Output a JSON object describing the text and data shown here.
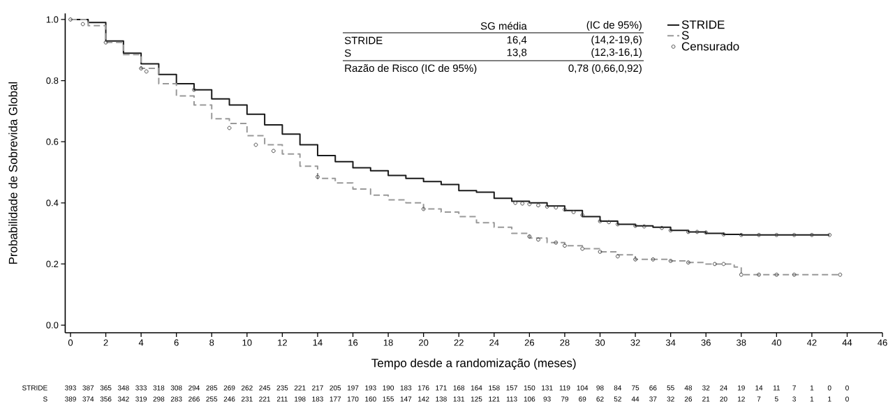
{
  "chart_data": {
    "type": "step",
    "xlabel": "Tempo desde a randomização (meses)",
    "ylabel": "Probabilidade de Sobrevida Global",
    "xlim": [
      -0.3,
      46
    ],
    "ylim": [
      -0.025,
      1.02
    ],
    "xticks": [
      0,
      2,
      4,
      6,
      8,
      10,
      12,
      14,
      16,
      18,
      20,
      22,
      24,
      26,
      28,
      30,
      32,
      34,
      36,
      38,
      40,
      42,
      44,
      46
    ],
    "yticks": [
      {
        "value": 0,
        "label": "0.0"
      },
      {
        "value": 0.2,
        "label": "0.2"
      },
      {
        "value": 0.4,
        "label": "0.4"
      },
      {
        "value": 0.6,
        "label": "0.6"
      },
      {
        "value": 0.8,
        "label": "0.8"
      },
      {
        "value": 1,
        "label": "1.0"
      }
    ],
    "legend": "top right",
    "series": [
      {
        "name": "STRIDE",
        "color": "#1a1a1a",
        "line_style": "solid",
        "x": [
          0,
          1,
          2,
          3,
          4,
          5,
          6,
          7,
          8,
          9,
          10,
          11,
          12,
          13,
          14,
          15,
          16,
          17,
          18,
          19,
          20,
          21,
          22,
          23,
          24,
          25,
          26,
          27,
          28,
          29,
          30,
          31,
          32,
          33,
          34,
          35,
          36,
          37,
          38,
          43
        ],
        "values": [
          1.0,
          0.99,
          0.93,
          0.89,
          0.855,
          0.82,
          0.79,
          0.77,
          0.74,
          0.72,
          0.69,
          0.655,
          0.625,
          0.59,
          0.555,
          0.535,
          0.515,
          0.505,
          0.49,
          0.48,
          0.47,
          0.46,
          0.44,
          0.435,
          0.415,
          0.405,
          0.4,
          0.39,
          0.375,
          0.355,
          0.34,
          0.33,
          0.325,
          0.32,
          0.31,
          0.305,
          0.3,
          0.297,
          0.295,
          0.295
        ]
      },
      {
        "name": "S",
        "color": "#999999",
        "line_style": "dashed",
        "x": [
          0,
          1,
          2,
          3,
          4,
          5,
          6,
          7,
          8,
          9,
          10,
          11,
          12,
          13,
          14,
          15,
          16,
          17,
          18,
          19,
          20,
          21,
          22,
          23,
          24,
          25,
          26,
          27,
          28,
          29,
          30,
          31,
          32,
          33,
          34,
          35,
          36,
          37,
          37.6,
          38,
          43.6
        ],
        "values": [
          1.0,
          0.98,
          0.925,
          0.885,
          0.84,
          0.79,
          0.75,
          0.72,
          0.675,
          0.66,
          0.62,
          0.59,
          0.56,
          0.52,
          0.48,
          0.465,
          0.445,
          0.425,
          0.41,
          0.4,
          0.38,
          0.37,
          0.355,
          0.335,
          0.32,
          0.3,
          0.285,
          0.27,
          0.26,
          0.25,
          0.24,
          0.23,
          0.215,
          0.215,
          0.21,
          0.205,
          0.2,
          0.2,
          0.19,
          0.165,
          0.165
        ]
      },
      {
        "name": "Censurado",
        "type": "scatter",
        "marker": "circle",
        "color": "#444444",
        "x": [
          0,
          7,
          25.2,
          25.6,
          26,
          26.5,
          27,
          27.5,
          28,
          28.5,
          29,
          30,
          30.5,
          31,
          32,
          32.5,
          33.5,
          34,
          35,
          35.5,
          36,
          37,
          38,
          39,
          40,
          41,
          42,
          43,
          0.7,
          2,
          4,
          4.3,
          9,
          10.5,
          11.5,
          14,
          20,
          26,
          26.5,
          27.5,
          28,
          29,
          30,
          31,
          32,
          33,
          34,
          35,
          36.5,
          37,
          38,
          39,
          40,
          41,
          43.6
        ],
        "values": [
          1.0,
          0.77,
          0.4,
          0.398,
          0.396,
          0.392,
          0.388,
          0.385,
          0.378,
          0.37,
          0.36,
          0.34,
          0.337,
          0.33,
          0.325,
          0.323,
          0.318,
          0.31,
          0.305,
          0.305,
          0.303,
          0.297,
          0.295,
          0.295,
          0.295,
          0.295,
          0.295,
          0.295,
          0.985,
          0.925,
          0.84,
          0.83,
          0.645,
          0.59,
          0.57,
          0.485,
          0.38,
          0.29,
          0.28,
          0.27,
          0.26,
          0.25,
          0.24,
          0.225,
          0.215,
          0.215,
          0.21,
          0.205,
          0.2,
          0.2,
          0.165,
          0.165,
          0.165,
          0.165,
          0.165
        ]
      }
    ],
    "annotations": [
      "SG média",
      "(IC de 95%)",
      "STRIDE",
      "16,4",
      "(14,2-19,6)",
      "S",
      "13,8",
      "(12,3-16,1)",
      "Razão de Risco (IC de 95%)",
      "0,78 (0,66,0,92)",
      "STRIDE",
      "393",
      "387",
      "365",
      "348",
      "333",
      "318",
      "308",
      "294",
      "285",
      "269",
      "262",
      "245",
      "235",
      "221",
      "217",
      "205",
      "197",
      "193",
      "190",
      "183",
      "176",
      "171",
      "168",
      "164",
      "158",
      "157",
      "150",
      "131",
      "119",
      "104",
      "98",
      "84",
      "75",
      "66",
      "55",
      "48",
      "32",
      "24",
      "19",
      "14",
      "11",
      "7",
      "1",
      "0",
      "0",
      "S",
      "389",
      "374",
      "356",
      "342",
      "319",
      "298",
      "283",
      "266",
      "255",
      "246",
      "231",
      "221",
      "211",
      "198",
      "183",
      "177",
      "170",
      "160",
      "155",
      "147",
      "142",
      "138",
      "131",
      "125",
      "121",
      "113",
      "106",
      "93",
      "79",
      "69",
      "62",
      "52",
      "44",
      "37",
      "32",
      "26",
      "21",
      "20",
      "12",
      "7",
      "5",
      "3",
      "1",
      "1",
      "0"
    ]
  }
}
